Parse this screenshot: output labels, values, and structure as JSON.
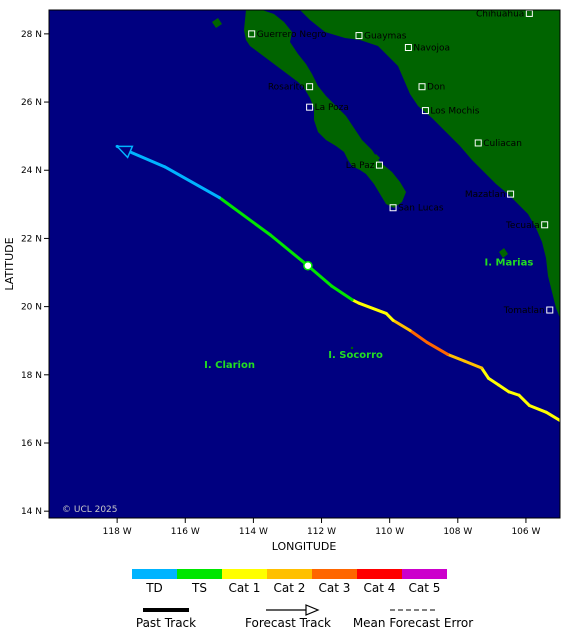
{
  "axes": {
    "xlabel": "LONGITUDE",
    "ylabel": "LATITUDE",
    "lon_range": [
      -120,
      -105
    ],
    "lat_range": [
      13.8,
      28.7
    ],
    "x_ticks": [
      {
        "value": -118,
        "label": "118 W"
      },
      {
        "value": -116,
        "label": "116 W"
      },
      {
        "value": -114,
        "label": "114 W"
      },
      {
        "value": -112,
        "label": "112 W"
      },
      {
        "value": -110,
        "label": "110 W"
      },
      {
        "value": -108,
        "label": "108 W"
      },
      {
        "value": -106,
        "label": "106 W"
      }
    ],
    "y_ticks": [
      {
        "value": 28,
        "label": "28 N"
      },
      {
        "value": 26,
        "label": "26 N"
      },
      {
        "value": 24,
        "label": "24 N"
      },
      {
        "value": 22,
        "label": "22 N"
      },
      {
        "value": 20,
        "label": "20 N"
      },
      {
        "value": 18,
        "label": "18 N"
      },
      {
        "value": 16,
        "label": "16 N"
      },
      {
        "value": 14,
        "label": "14 N"
      }
    ]
  },
  "colors": {
    "ocean": "#000080",
    "land": "#006400",
    "TD": "#00b4ff",
    "TS": "#00e600",
    "Cat 1": "#ffff00",
    "Cat 2": "#ffc000",
    "Cat 3": "#ff6600",
    "Cat 4": "#ff0000",
    "Cat 5": "#cc00cc"
  },
  "cities": [
    {
      "name": "Chihuahua",
      "lon": -105.9,
      "lat": 28.6,
      "side": "left"
    },
    {
      "name": "Guerrero Negro",
      "lon": -114.05,
      "lat": 28.0,
      "side": "right"
    },
    {
      "name": "Guaymas",
      "lon": -110.9,
      "lat": 27.95,
      "side": "right"
    },
    {
      "name": "Navojoa",
      "lon": -109.45,
      "lat": 27.6,
      "side": "right"
    },
    {
      "name": "Rosarito",
      "lon": -112.35,
      "lat": 26.45,
      "side": "left"
    },
    {
      "name": "Don",
      "lon": -109.05,
      "lat": 26.45,
      "side": "right"
    },
    {
      "name": "La Poza",
      "lon": -112.35,
      "lat": 25.85,
      "side": "right"
    },
    {
      "name": "Los Mochis",
      "lon": -108.95,
      "lat": 25.75,
      "side": "right"
    },
    {
      "name": "Culiacan",
      "lon": -107.4,
      "lat": 24.8,
      "side": "right"
    },
    {
      "name": "La Paz",
      "lon": -110.3,
      "lat": 24.15,
      "side": "left"
    },
    {
      "name": "Mazatlan",
      "lon": -106.45,
      "lat": 23.3,
      "side": "left"
    },
    {
      "name": "San Lucas",
      "lon": -109.9,
      "lat": 22.9,
      "side": "right"
    },
    {
      "name": "Tecuala",
      "lon": -105.45,
      "lat": 22.4,
      "side": "left"
    },
    {
      "name": "Tomatlan",
      "lon": -105.3,
      "lat": 19.9,
      "side": "left"
    }
  ],
  "islands": [
    {
      "name": "I. Marias",
      "lon": -106.5,
      "lat": 21.2
    },
    {
      "name": "I. Socorro",
      "lon": -111.0,
      "lat": 18.5
    },
    {
      "name": "I. Clarion",
      "lon": -114.7,
      "lat": 18.2
    }
  ],
  "track": {
    "current_position": {
      "lon": -112.4,
      "lat": 21.2
    },
    "past": [],
    "forecast": [
      {
        "lon": -104.9,
        "lat": 16.6,
        "cat": "Cat 1"
      },
      {
        "lon": -105.4,
        "lat": 16.9,
        "cat": "Cat 1"
      },
      {
        "lon": -105.9,
        "lat": 17.1,
        "cat": "Cat 1"
      },
      {
        "lon": -106.2,
        "lat": 17.4,
        "cat": "Cat 1"
      },
      {
        "lon": -106.5,
        "lat": 17.5,
        "cat": "Cat 1"
      },
      {
        "lon": -106.8,
        "lat": 17.7,
        "cat": "Cat 1"
      },
      {
        "lon": -107.1,
        "lat": 17.9,
        "cat": "Cat 1"
      },
      {
        "lon": -107.3,
        "lat": 18.2,
        "cat": "Cat 2"
      },
      {
        "lon": -107.8,
        "lat": 18.4,
        "cat": "Cat 2"
      },
      {
        "lon": -108.3,
        "lat": 18.6,
        "cat": "Cat 3"
      },
      {
        "lon": -108.9,
        "lat": 18.95,
        "cat": "Cat 3"
      },
      {
        "lon": -109.4,
        "lat": 19.3,
        "cat": "Cat 2"
      },
      {
        "lon": -109.9,
        "lat": 19.6,
        "cat": "Cat 1"
      },
      {
        "lon": -110.1,
        "lat": 19.8,
        "cat": "Cat 1"
      },
      {
        "lon": -110.9,
        "lat": 20.1,
        "cat": "Cat 1"
      },
      {
        "lon": -111.1,
        "lat": 20.2,
        "cat": "TS"
      },
      {
        "lon": -111.7,
        "lat": 20.6,
        "cat": "TS"
      },
      {
        "lon": -112.4,
        "lat": 21.2,
        "cat": "TS"
      },
      {
        "lon": -113.5,
        "lat": 22.1,
        "cat": "TS"
      },
      {
        "lon": -115.0,
        "lat": 23.2,
        "cat": "TD"
      },
      {
        "lon": -116.6,
        "lat": 24.1,
        "cat": "TD"
      },
      {
        "lon": -118.0,
        "lat": 24.7,
        "cat": "TD"
      }
    ]
  },
  "legend": {
    "categories": [
      "TD",
      "TS",
      "Cat 1",
      "Cat 2",
      "Cat 3",
      "Cat 4",
      "Cat 5"
    ],
    "past_track": "Past Track",
    "forecast_track": "Forecast Track",
    "mean_error": "Mean Forecast Error"
  },
  "copyright": "© UCL 2025"
}
